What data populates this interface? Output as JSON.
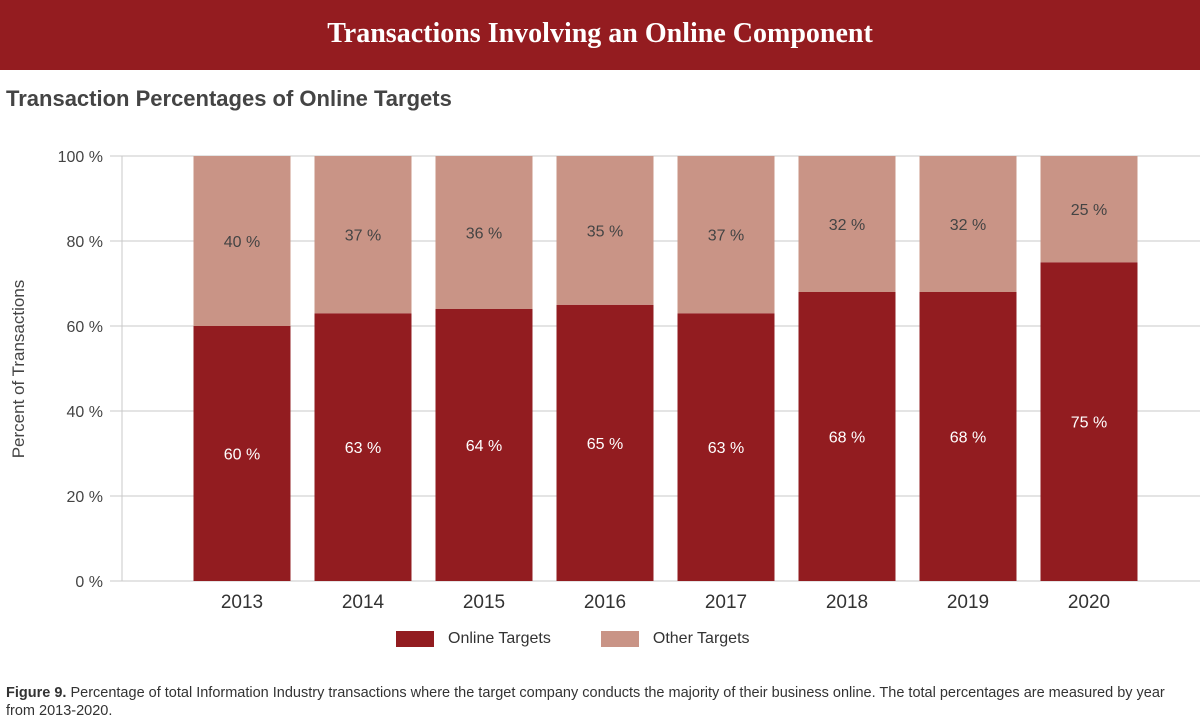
{
  "banner_title": "Transactions Involving an Online Component",
  "chart_data": {
    "type": "bar",
    "stacked": true,
    "title": "Transaction Percentages of Online Targets",
    "xlabel": "",
    "ylabel": "Percent of Transactions",
    "ylim": [
      0,
      100
    ],
    "yticks": [
      "0 %",
      "20 %",
      "40 %",
      "60 %",
      "80 %",
      "100 %"
    ],
    "categories": [
      "2013",
      "2014",
      "2015",
      "2016",
      "2017",
      "2018",
      "2019",
      "2020"
    ],
    "series": [
      {
        "name": "Online Targets",
        "color": "#921c20",
        "values": [
          60,
          63,
          64,
          65,
          63,
          68,
          68,
          75
        ]
      },
      {
        "name": "Other Targets",
        "color": "#c99486",
        "values": [
          40,
          37,
          36,
          35,
          37,
          32,
          32,
          25
        ]
      }
    ],
    "grid": true,
    "legend": "bottom-center"
  },
  "caption": {
    "label": "Figure 9.",
    "text": " Percentage of total Information Industry transactions where the target company conducts the majority of their business online. The total percentages are measured by year from 2013-2020."
  }
}
